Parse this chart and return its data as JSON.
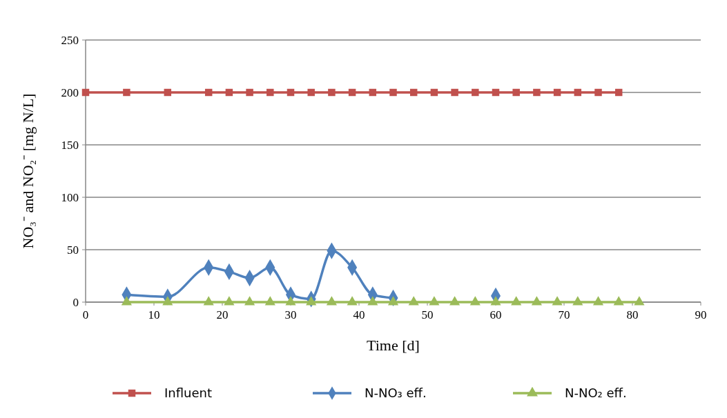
{
  "chart_data": {
    "type": "line",
    "xlabel": "Time [d]",
    "ylabel": "NO₃⁻ and NO₂⁻ [mg N/L]",
    "xlim": [
      0,
      90
    ],
    "xticks": [
      0,
      10,
      20,
      30,
      40,
      50,
      60,
      70,
      80,
      90
    ],
    "ylim": [
      0,
      250
    ],
    "yticks": [
      0,
      50,
      100,
      150,
      200,
      250
    ],
    "grid": "y",
    "legend": "bottom",
    "line_style": "solid",
    "series": [
      {
        "name": "Influent",
        "color": "#c0504d",
        "marker": "square",
        "x": [
          0,
          6,
          12,
          18,
          21,
          24,
          27,
          30,
          33,
          36,
          39,
          42,
          45,
          48,
          51,
          54,
          57,
          60,
          63,
          66,
          69,
          72,
          75,
          78
        ],
        "values": [
          200,
          200,
          200,
          200,
          200,
          200,
          200,
          200,
          200,
          200,
          200,
          200,
          200,
          200,
          200,
          200,
          200,
          200,
          200,
          200,
          200,
          200,
          200,
          200
        ]
      },
      {
        "name": "N-NO₃ eff.",
        "color": "#4f81bd",
        "marker": "diamond",
        "x": [
          6,
          12,
          18,
          21,
          24,
          27,
          30,
          33,
          36,
          39,
          42,
          45,
          48,
          60
        ],
        "values": [
          7,
          5,
          33,
          29,
          23,
          33,
          7,
          3,
          49,
          33,
          7,
          4,
          null,
          6
        ]
      },
      {
        "name": "N-NO₂ eff.",
        "color": "#9bbb59",
        "marker": "triangle",
        "x": [
          6,
          12,
          18,
          21,
          24,
          27,
          30,
          33,
          36,
          39,
          42,
          45,
          48,
          51,
          54,
          57,
          60,
          63,
          66,
          69,
          72,
          75,
          78,
          81
        ],
        "values": [
          0,
          0,
          0,
          0,
          0,
          0,
          0,
          0,
          0,
          0,
          0,
          0,
          0,
          0,
          0,
          0,
          0,
          0,
          0,
          0,
          0,
          0,
          0,
          0
        ]
      }
    ]
  }
}
